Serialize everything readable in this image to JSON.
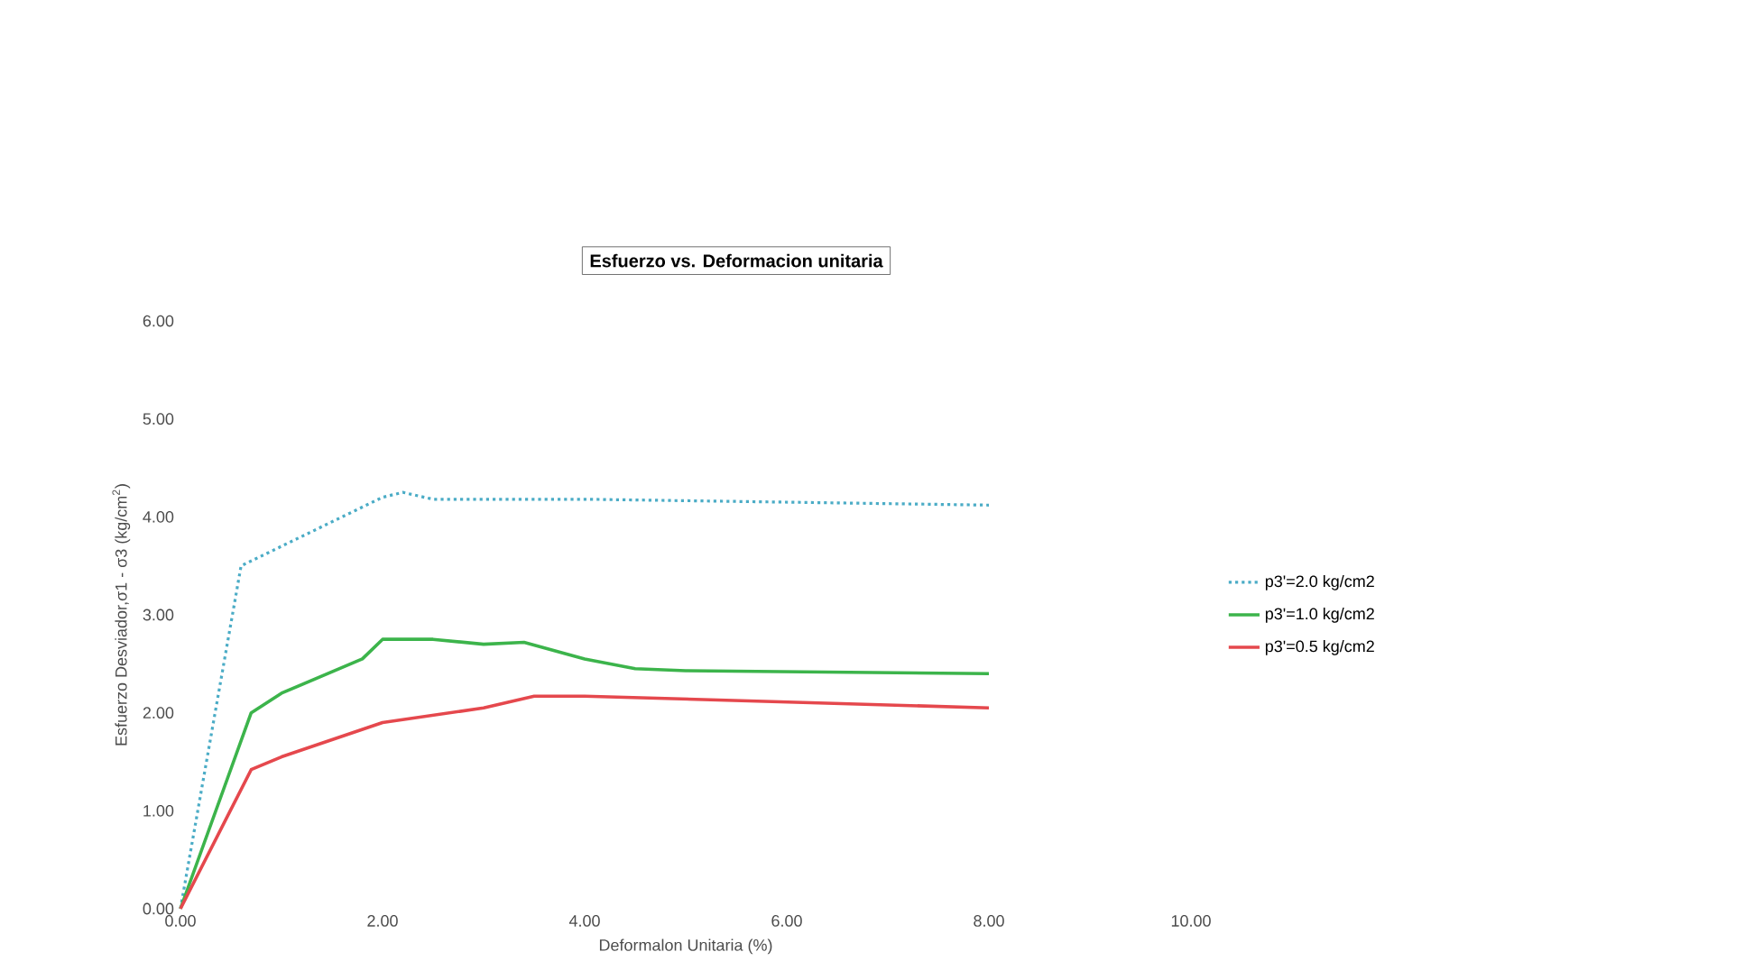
{
  "chart_data": {
    "type": "line",
    "title": "Esfuerzo vs. Deformacion unitaria",
    "xlabel": "Deformalon Unitaria (%)",
    "ylabel": "Esfuerzo Desviador,σ1 - σ3  (kg/cm$^{2}$)",
    "xlim": [
      0,
      10
    ],
    "xticks": [
      {
        "value": 0,
        "label": "0.00"
      },
      {
        "value": 2,
        "label": "2.00"
      },
      {
        "value": 4,
        "label": "4.00"
      },
      {
        "value": 6,
        "label": "6.00"
      },
      {
        "value": 8,
        "label": "8.00"
      },
      {
        "value": 10,
        "label": "10.00"
      }
    ],
    "ylim": [
      0,
      6
    ],
    "yticks": [
      {
        "value": 0,
        "label": "0.00"
      },
      {
        "value": 1,
        "label": "1.00"
      },
      {
        "value": 2,
        "label": "2.00"
      },
      {
        "value": 3,
        "label": "3.00"
      },
      {
        "value": 4,
        "label": "4.00"
      },
      {
        "value": 5,
        "label": "5.00"
      },
      {
        "value": 6,
        "label": "6.00"
      }
    ],
    "legend": "right",
    "grid": false,
    "marker": "none",
    "series": [
      {
        "name": "p3'=2.0 kg/cm2",
        "color": "#4bacc6",
        "line_style": "dotted",
        "x": [
          0,
          0.6,
          1,
          2,
          2.2,
          2.5,
          4,
          8
        ],
        "values": [
          0,
          3.5,
          3.7,
          4.2,
          4.25,
          4.18,
          4.18,
          4.12
        ]
      },
      {
        "name": "p3'=1.0 kg/cm2",
        "color": "#3cb44b",
        "line_style": "solid",
        "x": [
          0,
          0.7,
          1,
          1.8,
          2,
          2.5,
          3,
          3.4,
          4,
          4.5,
          5,
          8
        ],
        "values": [
          0,
          2.0,
          2.2,
          2.55,
          2.75,
          2.75,
          2.7,
          2.72,
          2.55,
          2.45,
          2.43,
          2.4
        ]
      },
      {
        "name": "p3'=0.5 kg/cm2",
        "color": "#e5484d",
        "line_style": "solid",
        "x": [
          0,
          0.7,
          1,
          2,
          3,
          3.5,
          4,
          8
        ],
        "values": [
          0,
          1.42,
          1.55,
          1.9,
          2.05,
          2.17,
          2.17,
          2.05
        ]
      }
    ]
  }
}
